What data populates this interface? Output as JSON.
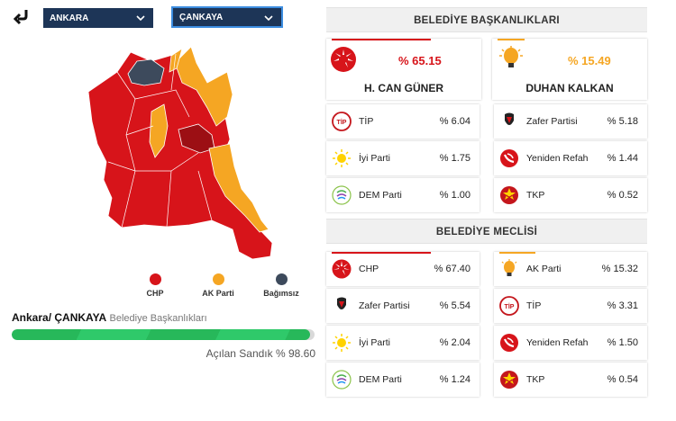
{
  "selectors": {
    "province": "ANKARA",
    "district": "ÇANKAYA"
  },
  "legend": [
    {
      "label": "CHP",
      "color": "#d7141a"
    },
    {
      "label": "AK Parti",
      "color": "#f5a623"
    },
    {
      "label": "Bağımsız",
      "color": "#3d4a5c"
    }
  ],
  "location": {
    "title": "Ankara/ ÇANKAYA",
    "subtitle": "Belediye Başkanlıkları"
  },
  "ballot_progress": {
    "label": "Açılan Sandık % 98.60",
    "percent": 98.6
  },
  "mayoral": {
    "header": "BELEDİYE BAŞKANLIKLARI",
    "leaders": [
      {
        "pct": "% 65.15",
        "name": "H. CAN GÜNER",
        "party": "CHP",
        "color": "#d7141a"
      },
      {
        "pct": "% 15.49",
        "name": "DUHAN KALKAN",
        "party": "AK Parti",
        "color": "#f5a623"
      }
    ],
    "others": [
      {
        "name": "TİP",
        "pct": "% 6.04",
        "logo": "tip-logo-icon"
      },
      {
        "name": "Zafer Partisi",
        "pct": "% 5.18",
        "logo": "zafer-logo-icon"
      },
      {
        "name": "İyi Parti",
        "pct": "% 1.75",
        "logo": "iyi-logo-icon"
      },
      {
        "name": "Yeniden Refah",
        "pct": "% 1.44",
        "logo": "refah-logo-icon"
      },
      {
        "name": "DEM Parti",
        "pct": "% 1.00",
        "logo": "dem-logo-icon"
      },
      {
        "name": "TKP",
        "pct": "% 0.52",
        "logo": "tkp-logo-icon"
      }
    ]
  },
  "council": {
    "header": "BELEDİYE MECLİSİ",
    "rows": [
      {
        "name": "CHP",
        "pct": "% 67.40",
        "logo": "chp-logo-icon",
        "color": "#d7141a"
      },
      {
        "name": "AK Parti",
        "pct": "% 15.32",
        "logo": "akp-logo-icon",
        "color": "#f5a623"
      },
      {
        "name": "Zafer Partisi",
        "pct": "% 5.54",
        "logo": "zafer-logo-icon",
        "color": ""
      },
      {
        "name": "TİP",
        "pct": "% 3.31",
        "logo": "tip-logo-icon",
        "color": ""
      },
      {
        "name": "İyi Parti",
        "pct": "% 2.04",
        "logo": "iyi-logo-icon",
        "color": ""
      },
      {
        "name": "Yeniden Refah",
        "pct": "% 1.50",
        "logo": "refah-logo-icon",
        "color": ""
      },
      {
        "name": "DEM Parti",
        "pct": "% 1.24",
        "logo": "dem-logo-icon",
        "color": ""
      },
      {
        "name": "TKP",
        "pct": "% 0.54",
        "logo": "tkp-logo-icon",
        "color": ""
      }
    ]
  }
}
